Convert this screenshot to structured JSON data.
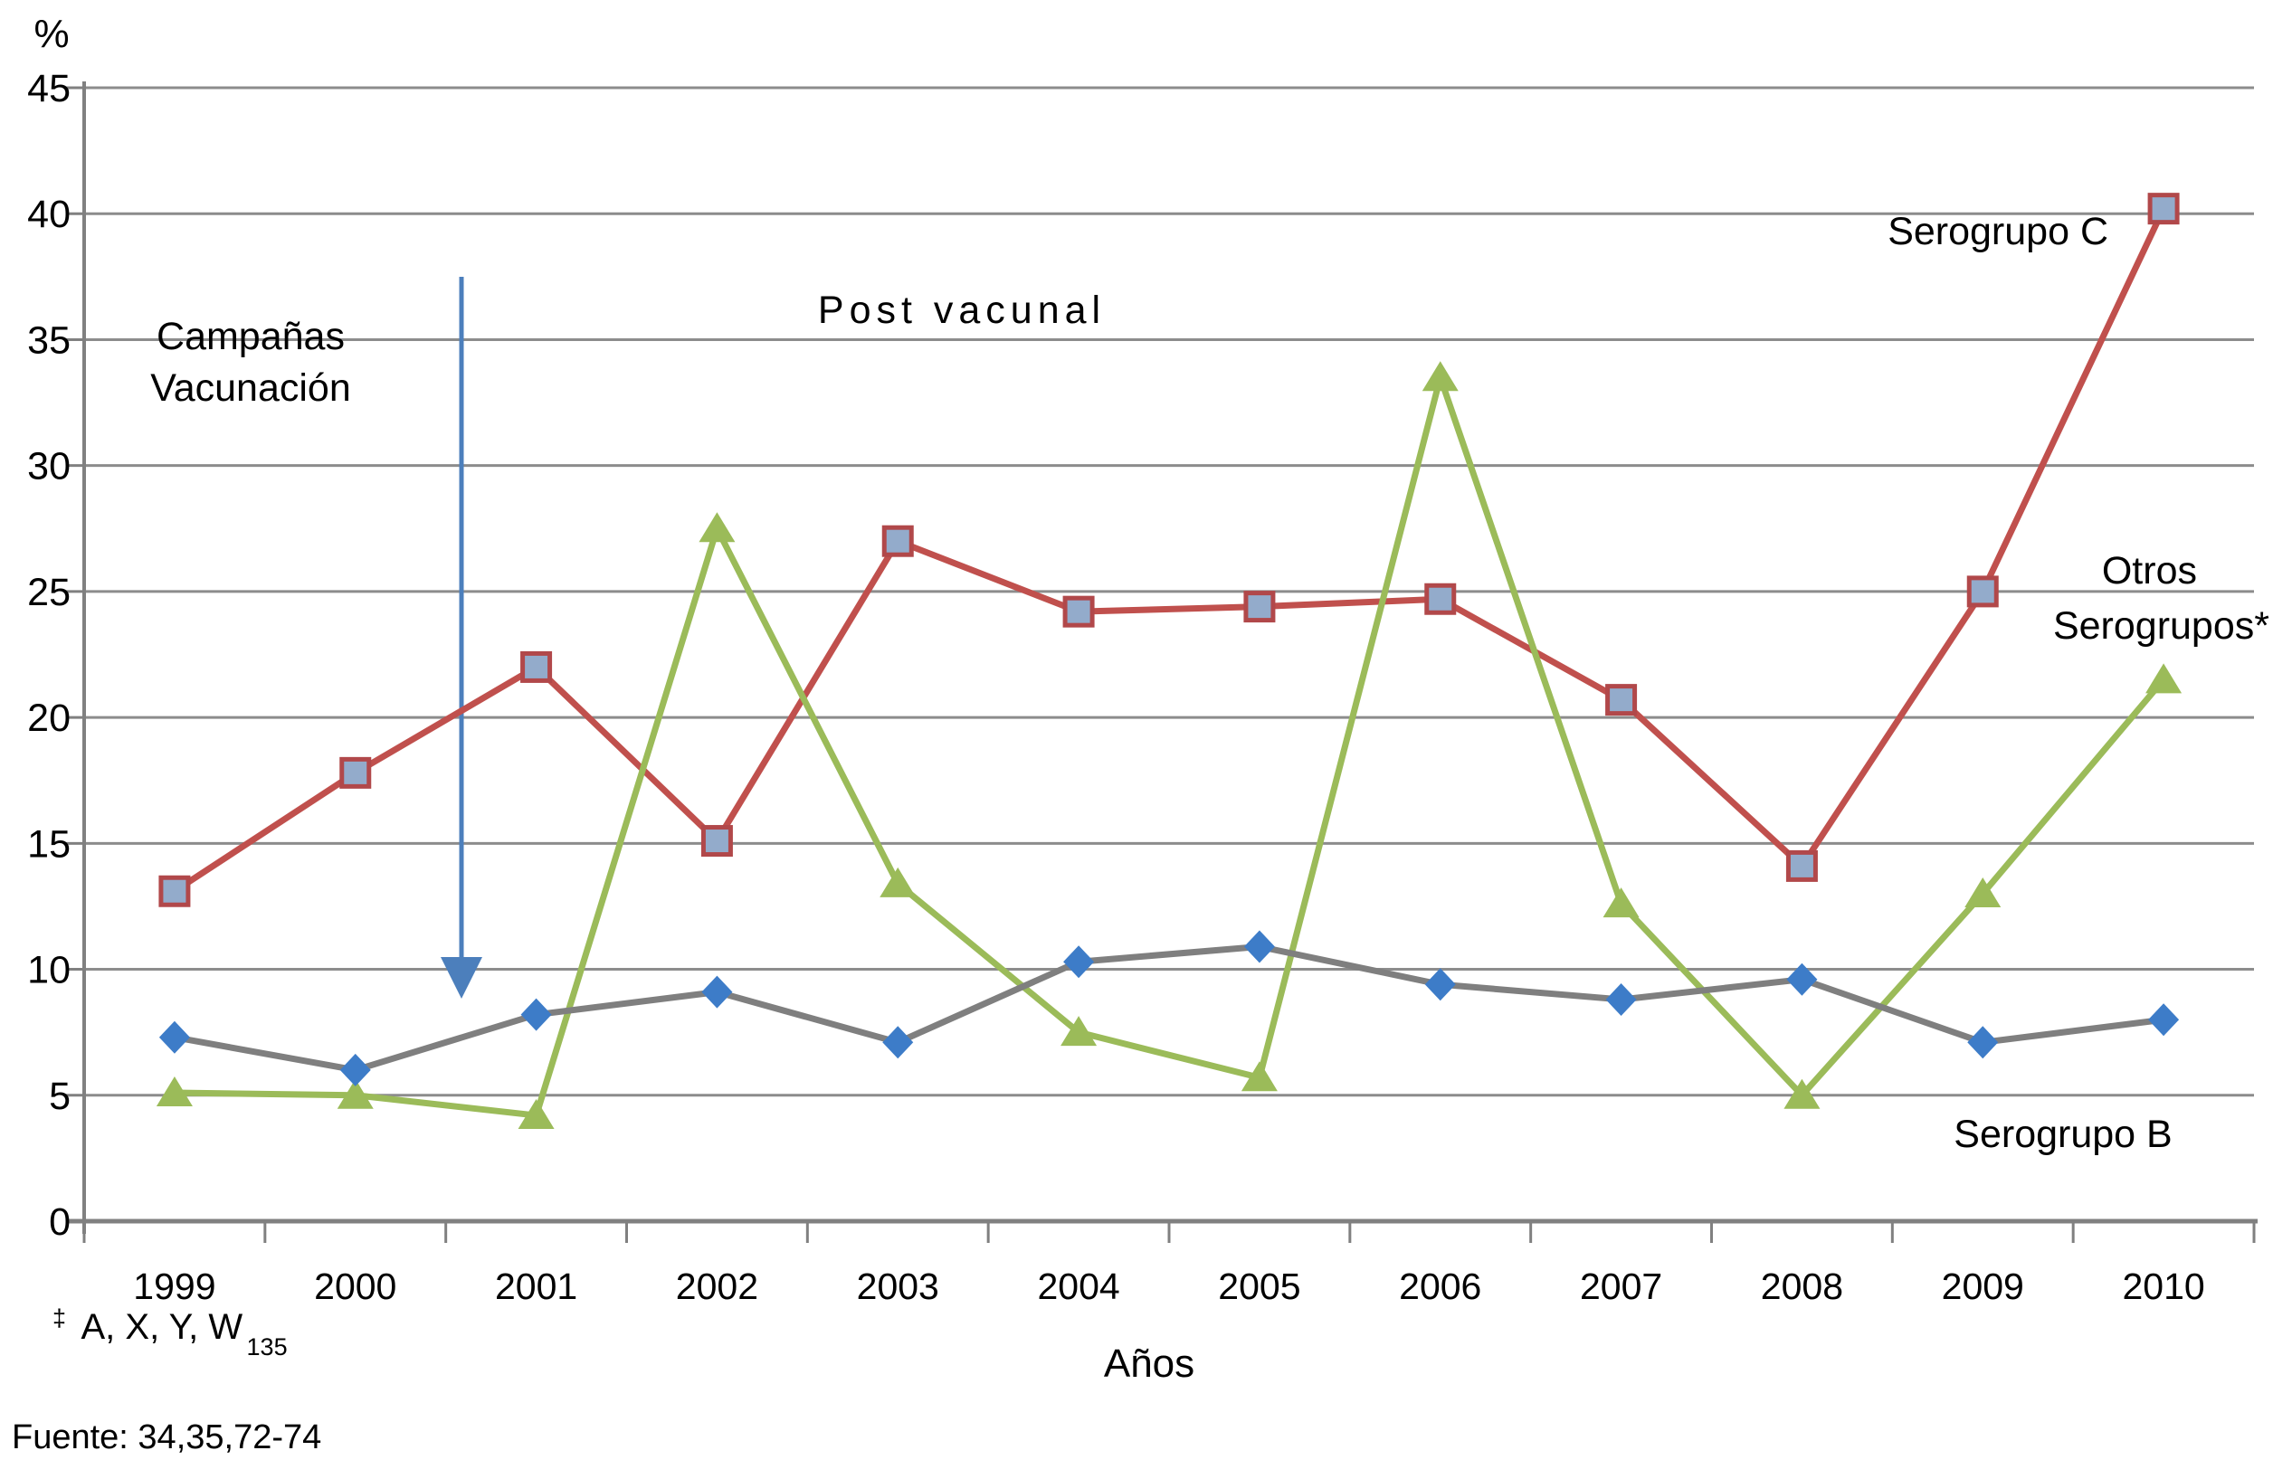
{
  "figure": {
    "y_axis_title": "%",
    "x_axis_title": "Años",
    "source": "Fuente: 34,35,72-74",
    "footnote": {
      "symbol": "‡",
      "text": "A, X, Y, W",
      "subscript": "135"
    }
  },
  "chart_data": {
    "type": "line",
    "title": "",
    "xlabel": "Años",
    "ylabel": "%",
    "ylim": [
      0,
      45
    ],
    "ytick_step": 5,
    "grid": true,
    "legend_position": "direct-labels-on-chart",
    "categories": [
      "1999",
      "2000",
      "2001",
      "2002",
      "2003",
      "2004",
      "2005",
      "2006",
      "2007",
      "2008",
      "2009",
      "2010"
    ],
    "series": [
      {
        "name": "Serogrupo C",
        "color": "#C0504D",
        "marker": "square",
        "marker_fill": "#93ABCB",
        "marker_stroke": "#B1484A",
        "values": [
          13.1,
          17.8,
          22.0,
          15.1,
          27.0,
          24.2,
          24.4,
          24.7,
          20.7,
          14.1,
          25.0,
          40.2
        ]
      },
      {
        "name": "Otros Serogrupos*",
        "color": "#9BBB59",
        "marker": "triangle",
        "marker_fill": "#9BBB59",
        "marker_stroke": "#9BBB59",
        "values": [
          5.1,
          5.0,
          4.2,
          27.5,
          13.4,
          7.5,
          5.7,
          33.5,
          12.6,
          5.0,
          13.0,
          21.5
        ]
      },
      {
        "name": "Serogrupo B",
        "color": "#7F7F7F",
        "marker": "diamond",
        "marker_fill": "#3D7CC8",
        "marker_stroke": "#3D7CC8",
        "values": [
          7.3,
          6.0,
          8.2,
          9.1,
          7.1,
          10.3,
          10.9,
          9.4,
          8.8,
          9.6,
          7.1,
          8.0
        ]
      }
    ]
  },
  "annotations": {
    "campaigns_line1": "Campañas",
    "campaigns_line2": "Vacunación",
    "post_vaccine": "Post vacunal",
    "serogroup_c_label": "Serogrupo C",
    "otros_label_line1": "Otros",
    "otros_label_line2": "Serogrupos*",
    "serogroup_b_label": "Serogrupo B",
    "arrow_color": "#4C7FBC",
    "axis_color": "#808080",
    "gridline_color": "#8C8C8C"
  }
}
